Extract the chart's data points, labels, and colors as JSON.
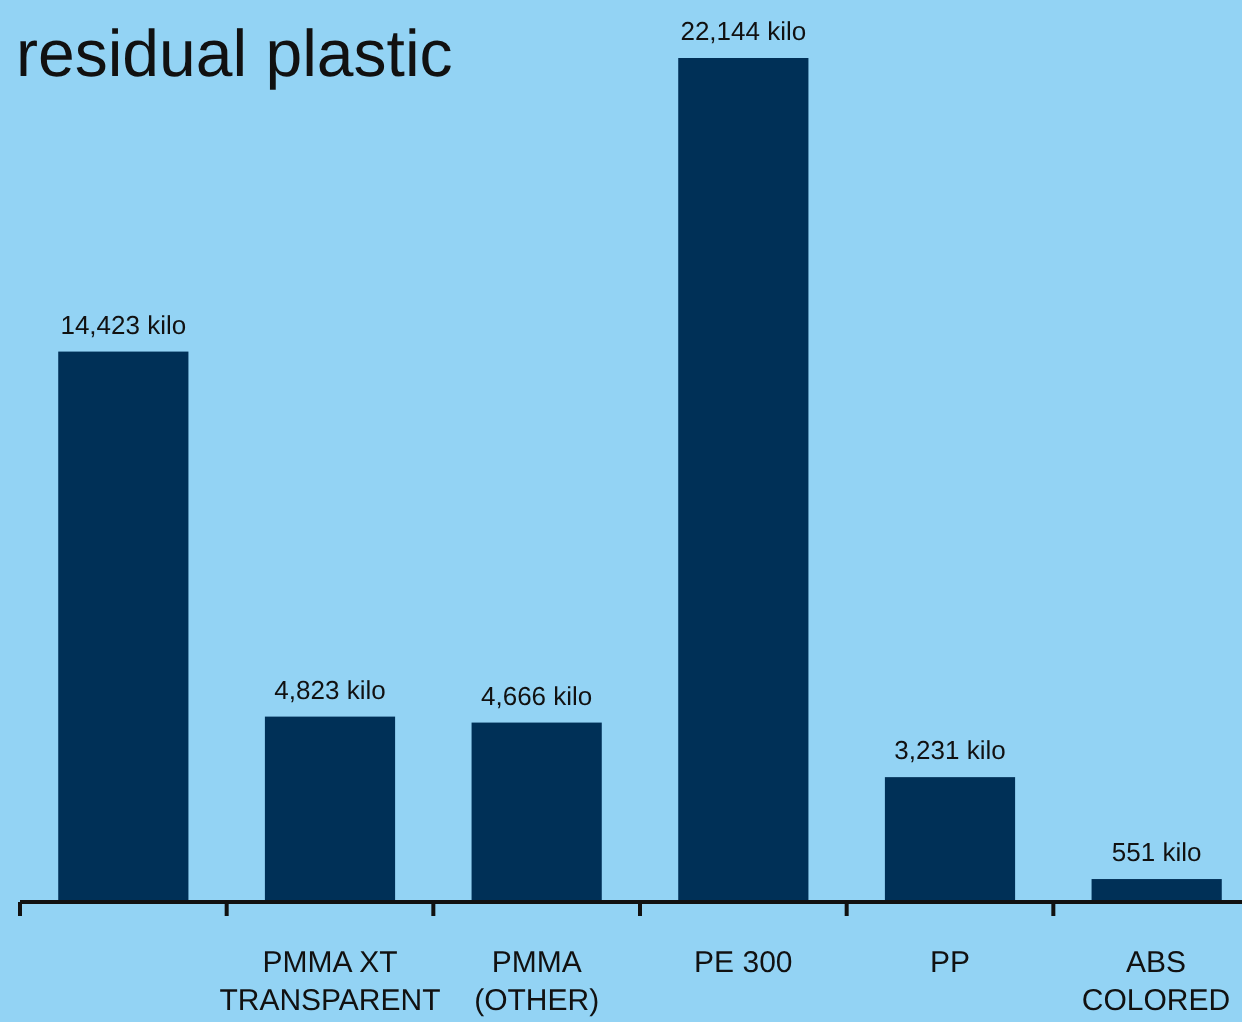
{
  "chart_data": {
    "type": "bar",
    "title": "residual plastic",
    "categories": [
      null,
      "PMMA XT TRANSPARENT",
      "PMMA (OTHER)",
      "PE 300",
      "PP",
      "ABS COLORED"
    ],
    "values": [
      14423,
      4823,
      4666,
      22144,
      3231,
      551
    ],
    "value_labels": [
      "14,423 kilo",
      "4,823 kilo",
      "4,666 kilo",
      "22,144 kilo",
      "3,231 kilo",
      "551 kilo"
    ],
    "color": "#003057"
  }
}
